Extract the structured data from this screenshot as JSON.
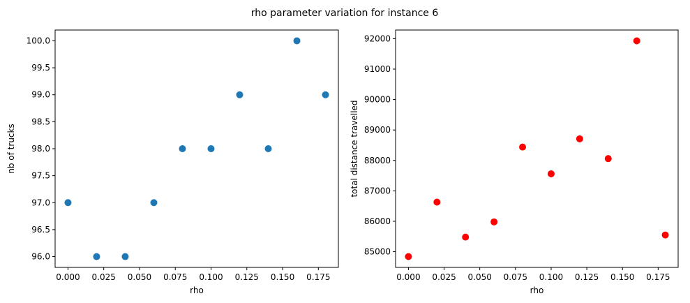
{
  "figure": {
    "title": "rho parameter variation for instance 6"
  },
  "chart_data": [
    {
      "type": "scatter",
      "xlabel": "rho",
      "ylabel": "nb of trucks",
      "x": [
        0.0,
        0.02,
        0.04,
        0.06,
        0.08,
        0.1,
        0.12,
        0.14,
        0.16,
        0.18
      ],
      "y": [
        97.0,
        96.0,
        96.0,
        97.0,
        98.0,
        98.0,
        99.0,
        98.0,
        100.0,
        99.0
      ],
      "xlim": [
        -0.009,
        0.189
      ],
      "ylim": [
        95.8,
        100.2
      ],
      "xticks": [
        0.0,
        0.025,
        0.05,
        0.075,
        0.1,
        0.125,
        0.15,
        0.175
      ],
      "xtick_labels": [
        "0.000",
        "0.025",
        "0.050",
        "0.075",
        "0.100",
        "0.125",
        "0.150",
        "0.175"
      ],
      "yticks": [
        96.0,
        96.5,
        97.0,
        97.5,
        98.0,
        98.5,
        99.0,
        99.5,
        100.0
      ],
      "ytick_labels": [
        "96.0",
        "96.5",
        "97.0",
        "97.5",
        "98.0",
        "98.5",
        "99.0",
        "99.5",
        "100.0"
      ],
      "color": "#1f77b4",
      "grid": false
    },
    {
      "type": "scatter",
      "xlabel": "rho",
      "ylabel": "total distance travelled",
      "x": [
        0.0,
        0.02,
        0.04,
        0.06,
        0.08,
        0.1,
        0.12,
        0.14,
        0.16,
        0.18
      ],
      "y": [
        84840,
        86630,
        85480,
        85980,
        88440,
        87560,
        88710,
        88060,
        91930,
        85550
      ],
      "xlim": [
        -0.009,
        0.189
      ],
      "ylim": [
        84485,
        92285
      ],
      "xticks": [
        0.0,
        0.025,
        0.05,
        0.075,
        0.1,
        0.125,
        0.15,
        0.175
      ],
      "xtick_labels": [
        "0.000",
        "0.025",
        "0.050",
        "0.075",
        "0.100",
        "0.125",
        "0.150",
        "0.175"
      ],
      "yticks": [
        85000,
        86000,
        87000,
        88000,
        89000,
        90000,
        91000,
        92000
      ],
      "ytick_labels": [
        "85000",
        "86000",
        "87000",
        "88000",
        "89000",
        "90000",
        "91000",
        "92000"
      ],
      "color": "#ff0000",
      "grid": false
    }
  ]
}
